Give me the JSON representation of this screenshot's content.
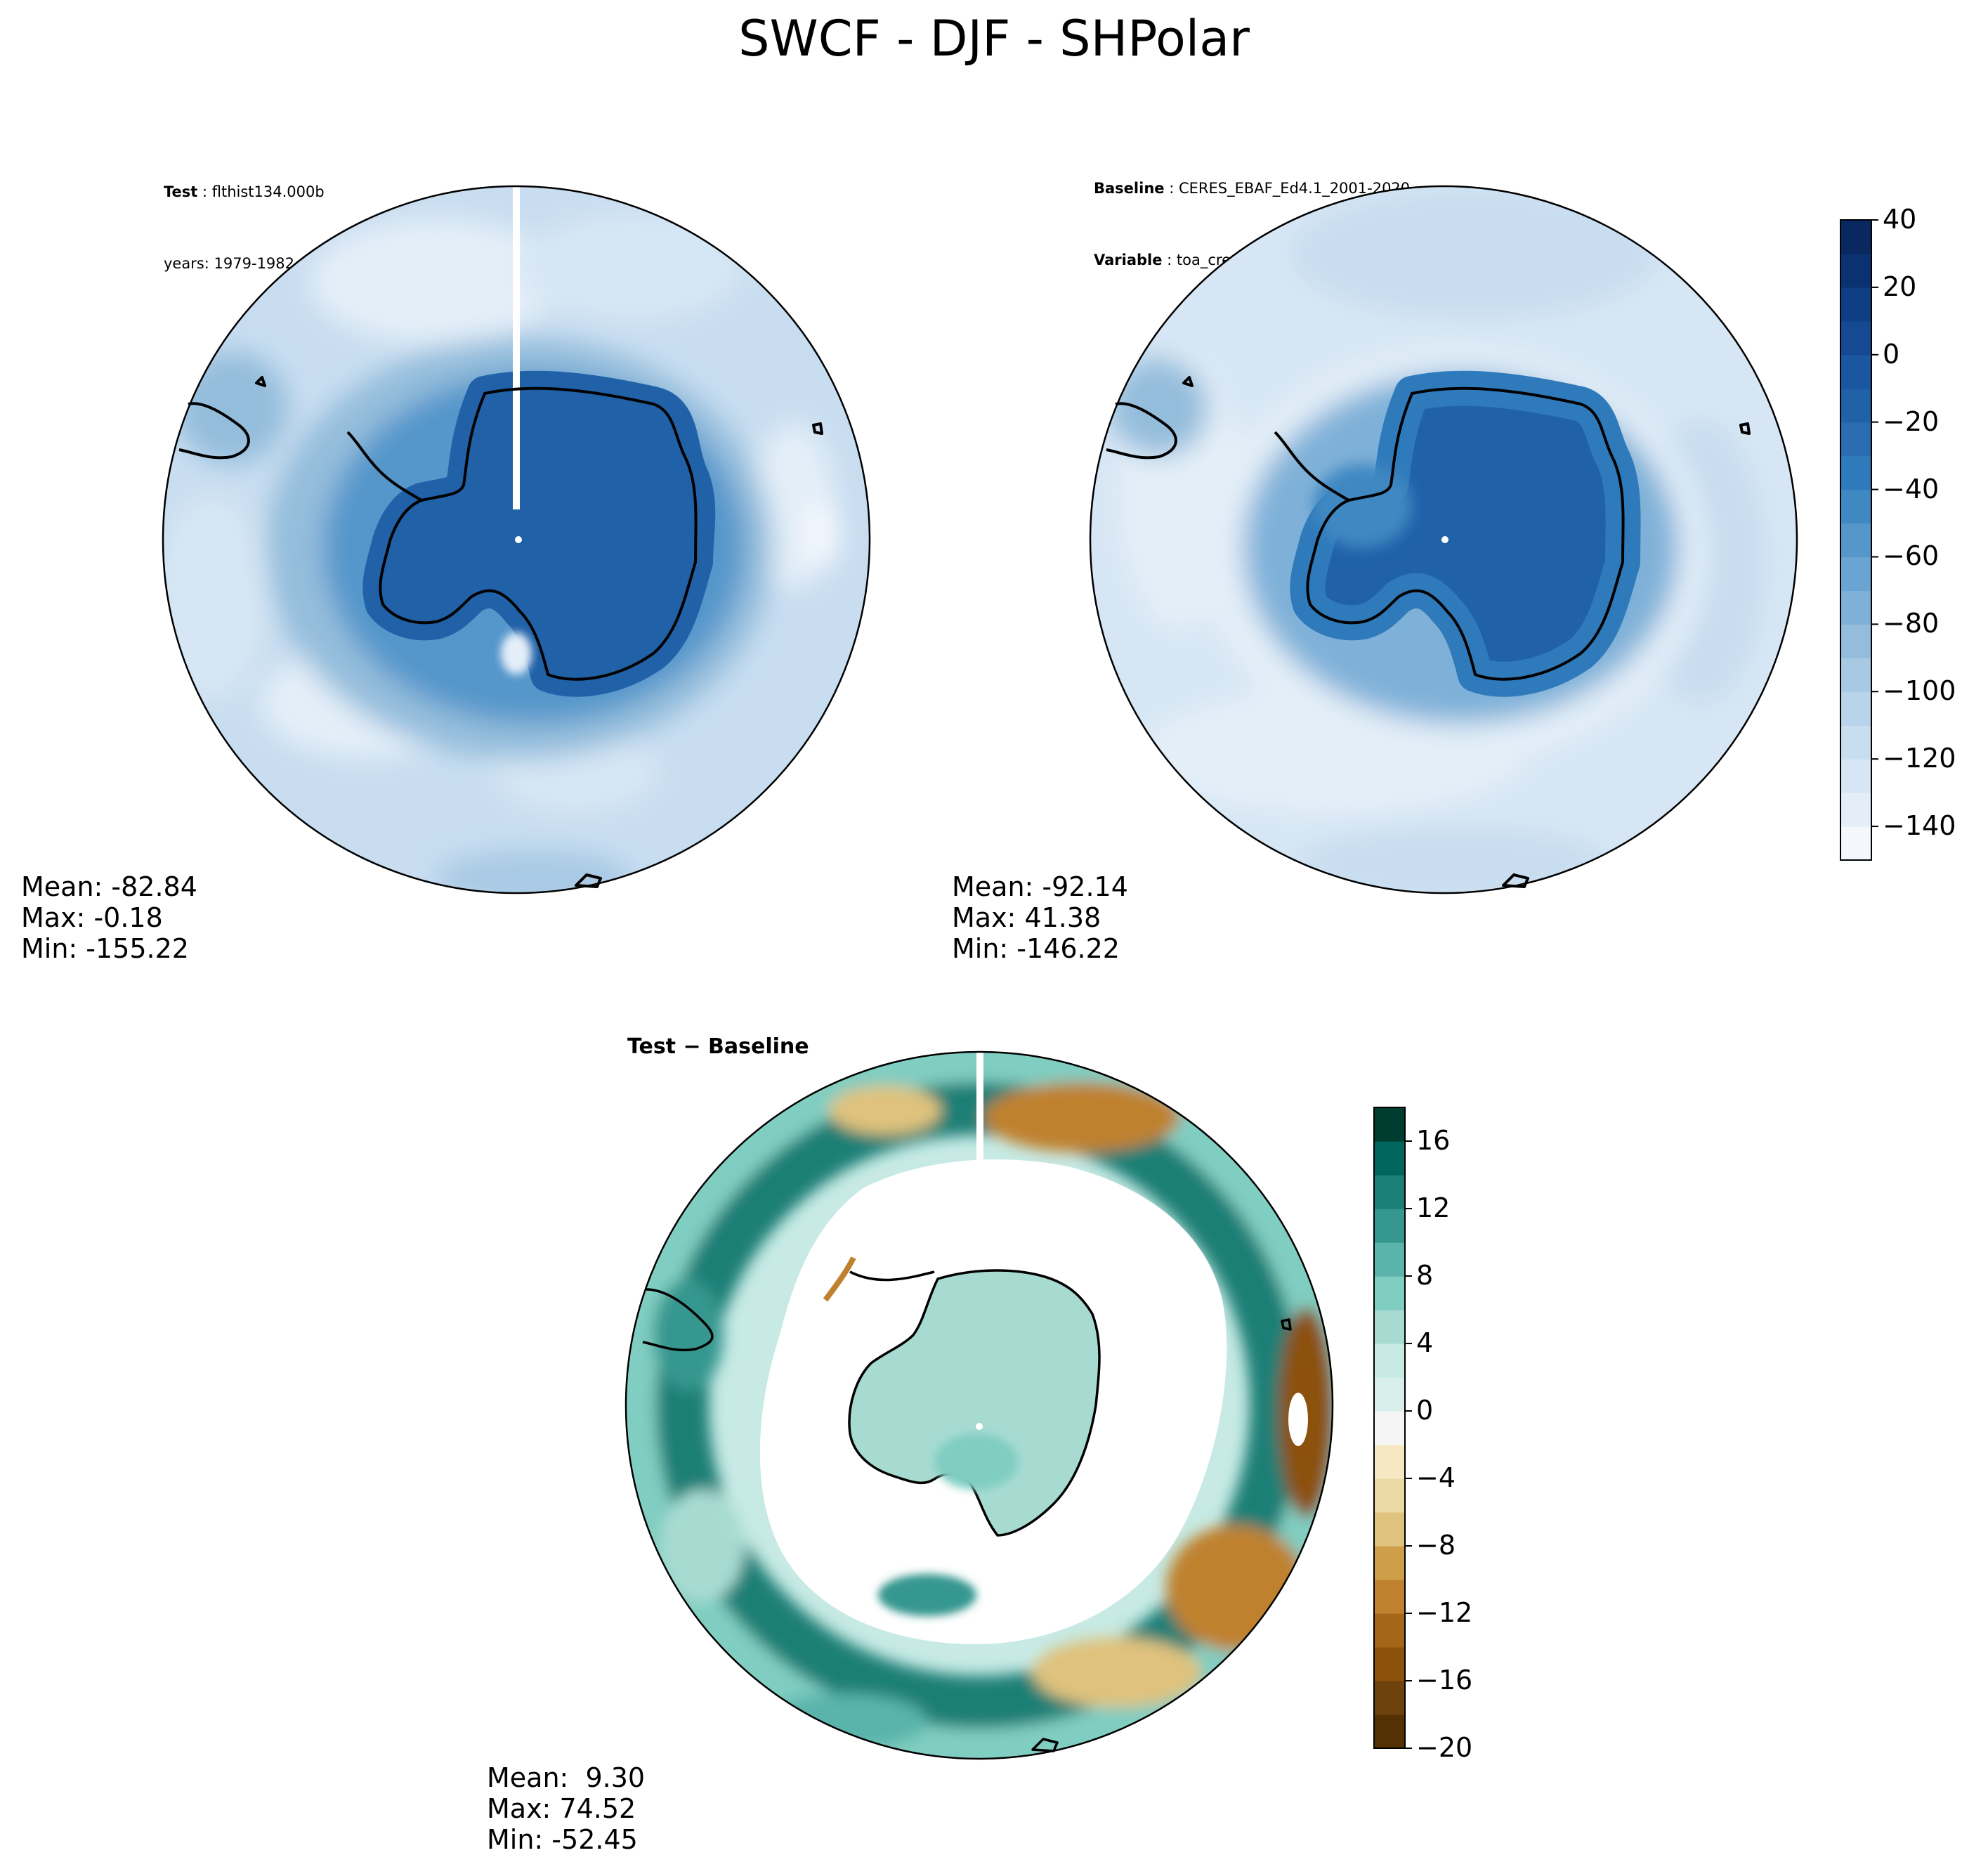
{
  "title": "SWCF - DJF - SHPolar",
  "panels": [
    {
      "id": "test",
      "meta": [
        {
          "key": "Test",
          "value": "flthist134.000b"
        },
        {
          "key": "",
          "value": "years: 1979-1982"
        }
      ],
      "stats": {
        "mean": "Mean: -82.84",
        "max": "Max: -0.18",
        "min": "Min: -155.22"
      }
    },
    {
      "id": "baseline",
      "meta": [
        {
          "key": "Baseline",
          "value": "CERES_EBAF_Ed4.1_2001-2020"
        },
        {
          "key": "Variable",
          "value": "toa_cre_sw_mon"
        }
      ],
      "stats": {
        "mean": "Mean: -92.14",
        "max": "Max: 41.38",
        "min": "Min: -146.22"
      }
    },
    {
      "id": "diff",
      "heading": "Test − Baseline",
      "stats": {
        "mean": "Mean:  9.30",
        "max": "Max: 74.52",
        "min": "Min: -52.45"
      }
    }
  ],
  "colorbars": {
    "main": {
      "ticks": [
        "40",
        "20",
        "0",
        "−20",
        "−40",
        "−60",
        "−80",
        "−100",
        "−120",
        "−140"
      ],
      "tick_values": [
        40,
        20,
        0,
        -20,
        -40,
        -60,
        -80,
        -100,
        -120,
        -140
      ],
      "range": [
        -150,
        40
      ],
      "colors": [
        "#f4f8fc",
        "#e3eef8",
        "#d6e6f4",
        "#c8ddf0",
        "#b8d3ea",
        "#a8c9e4",
        "#94bddc",
        "#7fb1d8",
        "#6aa4d2",
        "#5596cb",
        "#4088c2",
        "#2f7aba",
        "#2a6db1",
        "#2061a8",
        "#1b56a0",
        "#154a93",
        "#0e3f84",
        "#0a3170",
        "#08285f"
      ]
    },
    "diff": {
      "ticks": [
        "16",
        "12",
        "8",
        "4",
        "0",
        "−4",
        "−8",
        "−12",
        "−16",
        "−20"
      ],
      "tick_values": [
        16,
        12,
        8,
        4,
        0,
        -4,
        -8,
        -12,
        -16,
        -20
      ],
      "range": [
        -20,
        18
      ],
      "colors": [
        "#543005",
        "#6e420c",
        "#8c510a",
        "#a46619",
        "#bf812d",
        "#cf9e48",
        "#dfc27d",
        "#ead8a5",
        "#f6e8c3",
        "#f5f5f5",
        "#d7eeea",
        "#c7eae5",
        "#a7dbd2",
        "#80cdc1",
        "#5ab4ac",
        "#35978f",
        "#1a7f76",
        "#01665e",
        "#003c30"
      ]
    }
  },
  "chart_data": [
    {
      "type": "heatmap",
      "title": "Test: flthist134.000b, years: 1979-1982",
      "projection": "south polar stereographic",
      "colorbar_range": [
        -150,
        40
      ],
      "mean": -82.84,
      "max": -0.18,
      "min": -155.22
    },
    {
      "type": "heatmap",
      "title": "Baseline: CERES_EBAF_Ed4.1_2001-2020, Variable: toa_cre_sw_mon",
      "projection": "south polar stereographic",
      "colorbar_range": [
        -150,
        40
      ],
      "mean": -92.14,
      "max": 41.38,
      "min": -146.22
    },
    {
      "type": "heatmap",
      "title": "Test − Baseline",
      "projection": "south polar stereographic",
      "colorbar_range": [
        -20,
        18
      ],
      "mean": 9.3,
      "max": 74.52,
      "min": -52.45
    }
  ]
}
